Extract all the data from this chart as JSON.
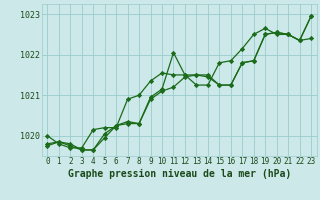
{
  "xlabel": "Graphe pression niveau de la mer (hPa)",
  "x": [
    0,
    1,
    2,
    3,
    4,
    5,
    6,
    7,
    8,
    9,
    10,
    11,
    12,
    13,
    14,
    15,
    16,
    17,
    18,
    19,
    20,
    21,
    22,
    23
  ],
  "line1": [
    1019.8,
    1019.85,
    1019.8,
    1019.65,
    1019.65,
    1020.05,
    1020.25,
    1020.35,
    1020.3,
    1020.95,
    1021.15,
    1022.05,
    1021.5,
    1021.5,
    1021.5,
    1021.25,
    1021.25,
    1021.8,
    1021.85,
    1022.5,
    1022.55,
    1022.5,
    1022.35,
    1022.95
  ],
  "line2": [
    1019.75,
    1019.85,
    1019.75,
    1019.65,
    1019.65,
    1019.95,
    1020.25,
    1020.3,
    1020.3,
    1020.9,
    1021.1,
    1021.2,
    1021.45,
    1021.5,
    1021.45,
    1021.25,
    1021.25,
    1021.8,
    1021.85,
    1022.5,
    1022.55,
    1022.5,
    1022.35,
    1022.4
  ],
  "line3": [
    1020.0,
    1019.8,
    1019.7,
    1019.7,
    1020.15,
    1020.2,
    1020.2,
    1020.9,
    1021.0,
    1021.35,
    1021.55,
    1021.5,
    1021.5,
    1021.25,
    1021.25,
    1021.8,
    1021.85,
    1022.15,
    1022.5,
    1022.65,
    1022.5,
    1022.5,
    1022.35,
    1022.95
  ],
  "line_color": "#1a6b1a",
  "bg_color": "#cce8e8",
  "grid_color": "#99cccc",
  "text_color": "#1a4a1a",
  "xlabel_color": "#1a4a1a",
  "ylim": [
    1019.5,
    1023.25
  ],
  "yticks": [
    1020,
    1021,
    1022,
    1023
  ],
  "xlim": [
    -0.5,
    23.5
  ],
  "marker": "D",
  "markersize": 2.2,
  "linewidth": 0.9,
  "xlabel_fontsize": 7.0,
  "tick_fontsize": 5.5
}
